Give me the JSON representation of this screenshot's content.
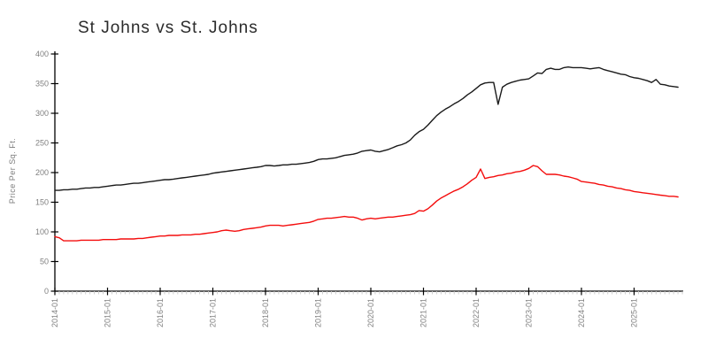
{
  "title": "St Johns vs St. Johns",
  "chart_data": {
    "type": "line",
    "title": "St Johns vs St. Johns",
    "xlabel": "",
    "ylabel": "Price Per Sq. Ft.",
    "ylim": [
      0,
      400
    ],
    "y_ticks": [
      0,
      50,
      100,
      150,
      200,
      250,
      300,
      350,
      400
    ],
    "x_start_month": "2014-01",
    "x_end_month": "2025-11",
    "x_tick_labels": [
      "2014-01",
      "2015-01",
      "2016-01",
      "2017-01",
      "2018-01",
      "2019-01",
      "2020-01",
      "2021-01",
      "2022-01",
      "2023-01",
      "2024-01",
      "2025-01"
    ],
    "grid": false,
    "legend_position": "none",
    "colors": {
      "axis": "#000000",
      "major_tick": "#000000",
      "minor_tick": "#c9c9c9",
      "tick_label": "#808080",
      "series_1": "#1a1a1a",
      "series_2": "#f40d0d"
    },
    "series": [
      {
        "name": "St Johns",
        "color": "#1a1a1a",
        "values": [
          170,
          170,
          171,
          171,
          172,
          172,
          173,
          174,
          174,
          175,
          175,
          176,
          177,
          178,
          179,
          179,
          180,
          181,
          182,
          182,
          183,
          184,
          185,
          186,
          187,
          188,
          188,
          189,
          190,
          191,
          192,
          193,
          194,
          195,
          196,
          197,
          199,
          200,
          201,
          202,
          203,
          204,
          205,
          206,
          207,
          208,
          209,
          210,
          212,
          212,
          211,
          212,
          213,
          213,
          214,
          214,
          215,
          216,
          217,
          219,
          222,
          223,
          223,
          224,
          225,
          227,
          229,
          230,
          231,
          233,
          236,
          237,
          238,
          236,
          235,
          237,
          239,
          242,
          245,
          247,
          250,
          255,
          263,
          269,
          273,
          280,
          288,
          296,
          302,
          307,
          311,
          316,
          320,
          325,
          331,
          336,
          342,
          348,
          351,
          352,
          352,
          315,
          344,
          349,
          352,
          354,
          356,
          357,
          358,
          363,
          368,
          367,
          374,
          376,
          374,
          374,
          377,
          378,
          377,
          377,
          377,
          376,
          375,
          376,
          377,
          374,
          372,
          370,
          368,
          366,
          365,
          362,
          360,
          359,
          357,
          355,
          352,
          357,
          349,
          348,
          346,
          345,
          344
        ]
      },
      {
        "name": "St. Johns",
        "color": "#f40d0d",
        "values": [
          92,
          90,
          85,
          85,
          85,
          85,
          86,
          86,
          86,
          86,
          86,
          87,
          87,
          87,
          87,
          88,
          88,
          88,
          88,
          89,
          89,
          90,
          91,
          92,
          93,
          93,
          94,
          94,
          94,
          95,
          95,
          95,
          96,
          96,
          97,
          98,
          99,
          100,
          102,
          103,
          102,
          101,
          102,
          104,
          105,
          106,
          107,
          108,
          110,
          111,
          111,
          111,
          110,
          111,
          112,
          113,
          114,
          115,
          116,
          118,
          121,
          122,
          123,
          123,
          124,
          125,
          126,
          125,
          125,
          123,
          120,
          122,
          123,
          122,
          123,
          124,
          125,
          125,
          126,
          127,
          128,
          129,
          131,
          136,
          135,
          139,
          145,
          152,
          157,
          161,
          165,
          169,
          172,
          176,
          181,
          187,
          192,
          206,
          190,
          192,
          193,
          195,
          196,
          198,
          199,
          201,
          202,
          204,
          207,
          212,
          210,
          203,
          197,
          197,
          197,
          196,
          194,
          193,
          191,
          189,
          185,
          184,
          183,
          182,
          180,
          179,
          177,
          176,
          174,
          173,
          171,
          170,
          168,
          167,
          166,
          165,
          164,
          163,
          162,
          161,
          160,
          160,
          159
        ]
      }
    ]
  }
}
